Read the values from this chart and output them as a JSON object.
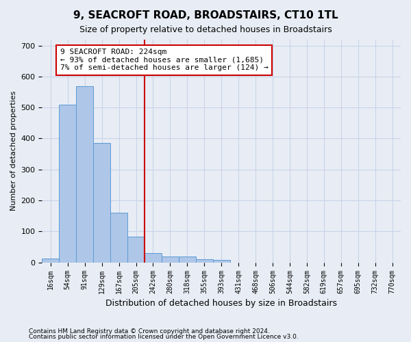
{
  "title": "9, SEACROFT ROAD, BROADSTAIRS, CT10 1TL",
  "subtitle": "Size of property relative to detached houses in Broadstairs",
  "xlabel": "Distribution of detached houses by size in Broadstairs",
  "ylabel": "Number of detached properties",
  "footnote1": "Contains HM Land Registry data © Crown copyright and database right 2024.",
  "footnote2": "Contains public sector information licensed under the Open Government Licence v3.0.",
  "bin_labels": [
    "16sqm",
    "54sqm",
    "91sqm",
    "129sqm",
    "167sqm",
    "205sqm",
    "242sqm",
    "280sqm",
    "318sqm",
    "355sqm",
    "393sqm",
    "431sqm",
    "468sqm",
    "506sqm",
    "544sqm",
    "582sqm",
    "619sqm",
    "657sqm",
    "695sqm",
    "732sqm",
    "770sqm"
  ],
  "bar_values": [
    13,
    510,
    568,
    385,
    160,
    83,
    30,
    20,
    20,
    10,
    8,
    0,
    0,
    0,
    0,
    0,
    0,
    0,
    0,
    0,
    0
  ],
  "bar_color": "#aec6e8",
  "bar_edge_color": "#5b9bd5",
  "grid_color": "#c8d4e8",
  "bg_color": "#e8edf5",
  "vline_color": "#cc0000",
  "vline_x": 5.5,
  "annotation_text1": "9 SEACROFT ROAD: 224sqm",
  "annotation_text2": "← 93% of detached houses are smaller (1,685)",
  "annotation_text3": "7% of semi-detached houses are larger (124) →",
  "annotation_box_facecolor": "#ffffff",
  "annotation_box_edgecolor": "#cc0000",
  "ylim": [
    0,
    720
  ],
  "yticks": [
    0,
    100,
    200,
    300,
    400,
    500,
    600,
    700
  ]
}
